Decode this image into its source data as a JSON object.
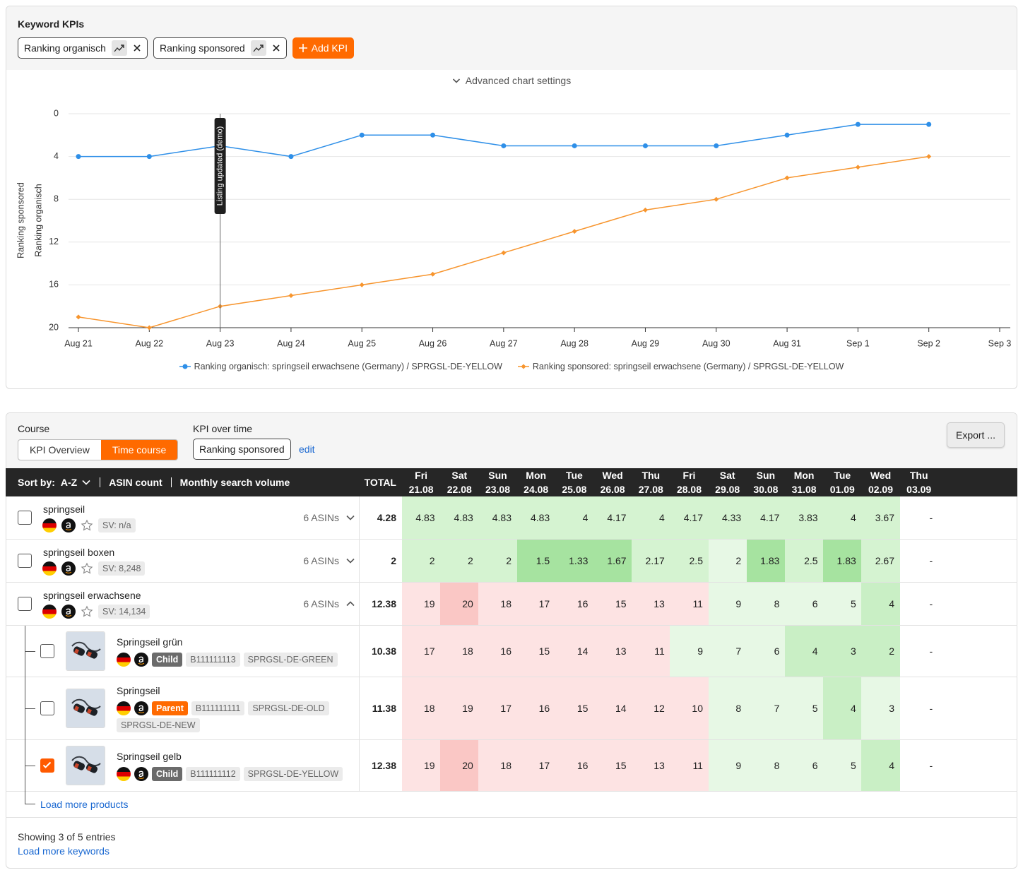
{
  "header": {
    "title": "Keyword KPIs",
    "kpis": [
      "Ranking organisch",
      "Ranking sponsored"
    ],
    "add_button": "Add KPI",
    "settings_toggle": "Advanced chart settings"
  },
  "chart_data": {
    "type": "line",
    "y_axis_titles": [
      "Ranking sponsored",
      "Ranking organisch"
    ],
    "categories": [
      "Aug 21",
      "Aug 22",
      "Aug 23",
      "Aug 24",
      "Aug 25",
      "Aug 26",
      "Aug 27",
      "Aug 28",
      "Aug 29",
      "Aug 30",
      "Aug 31",
      "Sep 1",
      "Sep 2",
      "Sep 3"
    ],
    "series": [
      {
        "name": "Ranking organisch: springseil erwachsene (Germany) / SPRGSL-DE-YELLOW",
        "color": "#2e8fe8",
        "marker": "circle",
        "values": [
          4,
          4,
          3,
          4,
          2,
          2,
          3,
          3,
          3,
          3,
          2,
          1,
          1,
          null
        ]
      },
      {
        "name": "Ranking sponsored: springseil erwachsene (Germany) / SPRGSL-DE-YELLOW",
        "color": "#f7952e",
        "marker": "diamond",
        "values": [
          19,
          20,
          18,
          17,
          16,
          15,
          13,
          11,
          9,
          8,
          6,
          5,
          4,
          null
        ]
      }
    ],
    "ylim": [
      20,
      0
    ],
    "yticks": [
      0,
      4,
      8,
      12,
      16,
      20
    ],
    "grid": true,
    "legend": "bottom",
    "annotations": [
      {
        "label": "Listing updated (demo)",
        "x": "Aug 23"
      }
    ]
  },
  "course_panel": {
    "course_label": "Course",
    "tabs": [
      {
        "label": "KPI Overview",
        "active": false
      },
      {
        "label": "Time course",
        "active": true
      }
    ],
    "kpi_label": "KPI over time",
    "kpi": "Ranking sponsored",
    "edit": "edit",
    "export": "Export ..."
  },
  "table": {
    "sort_label": "Sort by:",
    "sort_value": "A-Z",
    "sort_options": [
      "ASIN count",
      "Monthly search volume"
    ],
    "total_header": "TOTAL",
    "days": [
      {
        "weekday": "Fri",
        "date": "21.08"
      },
      {
        "weekday": "Sat",
        "date": "22.08"
      },
      {
        "weekday": "Sun",
        "date": "23.08"
      },
      {
        "weekday": "Mon",
        "date": "24.08"
      },
      {
        "weekday": "Tue",
        "date": "25.08"
      },
      {
        "weekday": "Wed",
        "date": "26.08"
      },
      {
        "weekday": "Thu",
        "date": "27.08"
      },
      {
        "weekday": "Fri",
        "date": "28.08"
      },
      {
        "weekday": "Sat",
        "date": "29.08"
      },
      {
        "weekday": "Sun",
        "date": "30.08"
      },
      {
        "weekday": "Mon",
        "date": "31.08"
      },
      {
        "weekday": "Tue",
        "date": "01.09"
      },
      {
        "weekday": "Wed",
        "date": "02.09"
      },
      {
        "weekday": "Thu",
        "date": "03.09"
      }
    ],
    "keywords": [
      {
        "name": "springseil",
        "sv": "SV: n/a",
        "asins": "6 ASINs",
        "expanded": false,
        "checked": false,
        "total": 4.28,
        "values": [
          4.83,
          4.83,
          4.83,
          4.83,
          4,
          4.17,
          4,
          4.17,
          4.33,
          4.17,
          3.83,
          4,
          3.67,
          "-"
        ],
        "colors": [
          "#d5f3d1",
          "#d5f3d1",
          "#d5f3d1",
          "#d5f3d1",
          "#d5f3d1",
          "#d5f3d1",
          "#d5f3d1",
          "#d5f3d1",
          "#d5f3d1",
          "#d5f3d1",
          "#d5f3d1",
          "#d5f3d1",
          "#d5f3d1",
          "#ffffff"
        ]
      },
      {
        "name": "springseil boxen",
        "sv": "SV: 8,248",
        "asins": "6 ASINs",
        "expanded": false,
        "checked": false,
        "total": 2,
        "values": [
          2,
          2,
          2,
          1.5,
          1.33,
          1.67,
          2.17,
          2.5,
          2,
          1.83,
          2.5,
          1.83,
          2.67,
          "-"
        ],
        "colors": [
          "#d5f3d1",
          "#d5f3d1",
          "#d5f3d1",
          "#a6e3a0",
          "#a6e3a0",
          "#a6e3a0",
          "#d5f3d1",
          "#d5f3d1",
          "#e7f8e5",
          "#a6e3a0",
          "#d5f3d1",
          "#a6e3a0",
          "#d5f3d1",
          "#ffffff"
        ]
      },
      {
        "name": "springseil erwachsene",
        "sv": "SV: 14,134",
        "asins": "6 ASINs",
        "expanded": true,
        "checked": false,
        "total": 12.38,
        "values": [
          19,
          20,
          18,
          17,
          16,
          15,
          13,
          11,
          9,
          8,
          6,
          5,
          4,
          "-"
        ],
        "colors": [
          "#fde3e3",
          "#fac7c5",
          "#fde3e3",
          "#fde3e3",
          "#fde3e3",
          "#fde3e3",
          "#fde3e3",
          "#fde3e3",
          "#e7f8e5",
          "#e7f8e5",
          "#e7f8e5",
          "#e7f8e5",
          "#c9efc5",
          "#ffffff"
        ],
        "products": [
          {
            "name": "Springseil grün",
            "role": "Child",
            "role_color": "#6b6b6b",
            "tags": [
              "B111111113",
              "SPRGSL-DE-GREEN"
            ],
            "checked": false,
            "total": 10.38,
            "values": [
              17,
              18,
              16,
              15,
              14,
              13,
              11,
              9,
              7,
              6,
              4,
              3,
              2,
              "-"
            ],
            "colors": [
              "#fde3e3",
              "#fde3e3",
              "#fde3e3",
              "#fde3e3",
              "#fde3e3",
              "#fde3e3",
              "#fde3e3",
              "#e7f8e5",
              "#e7f8e5",
              "#e7f8e5",
              "#c9efc5",
              "#c9efc5",
              "#c9efc5",
              "#ffffff"
            ]
          },
          {
            "name": "Springseil",
            "role": "Parent",
            "role_color": "#ff6a00",
            "tags": [
              "B111111111",
              "SPRGSL-DE-OLD",
              "SPRGSL-DE-NEW"
            ],
            "checked": false,
            "total": 11.38,
            "values": [
              18,
              19,
              17,
              16,
              15,
              14,
              12,
              10,
              8,
              7,
              5,
              4,
              3,
              "-"
            ],
            "colors": [
              "#fde3e3",
              "#fde3e3",
              "#fde3e3",
              "#fde3e3",
              "#fde3e3",
              "#fde3e3",
              "#fde3e3",
              "#fde3e3",
              "#e7f8e5",
              "#e7f8e5",
              "#e7f8e5",
              "#c9efc5",
              "#e7f8e5",
              "#ffffff"
            ]
          },
          {
            "name": "Springseil gelb",
            "role": "Child",
            "role_color": "#6b6b6b",
            "tags": [
              "B111111112",
              "SPRGSL-DE-YELLOW"
            ],
            "checked": true,
            "total": 12.38,
            "values": [
              19,
              20,
              18,
              17,
              16,
              15,
              13,
              11,
              9,
              8,
              6,
              5,
              4,
              "-"
            ],
            "colors": [
              "#fde3e3",
              "#fac7c5",
              "#fde3e3",
              "#fde3e3",
              "#fde3e3",
              "#fde3e3",
              "#fde3e3",
              "#fde3e3",
              "#e7f8e5",
              "#e7f8e5",
              "#e7f8e5",
              "#e7f8e5",
              "#c9efc5",
              "#ffffff"
            ]
          }
        ]
      }
    ],
    "load_more_products": "Load more products"
  },
  "footer": {
    "showing": "Showing 3 of 5 entries",
    "load_more": "Load more keywords"
  }
}
